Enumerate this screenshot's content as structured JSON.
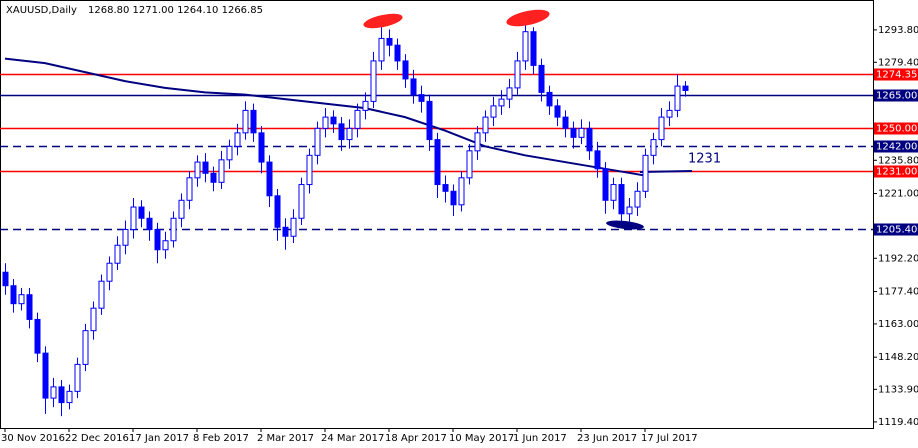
{
  "chart_data": {
    "type": "candlestick",
    "symbol": "XAUUSD,Daily",
    "quote": "1268.80 1271.00 1264.10 1266.85",
    "color": "#0000ff",
    "categories": [
      "30 Nov 2016",
      null,
      null,
      null,
      null,
      null,
      null,
      null,
      "22 Dec 2016",
      null,
      null,
      null,
      null,
      null,
      null,
      null,
      "17 Jan 2017",
      null,
      null,
      null,
      null,
      null,
      null,
      null,
      "8 Feb 2017",
      null,
      null,
      null,
      null,
      null,
      null,
      null,
      "2 Mar 2017",
      null,
      null,
      null,
      null,
      null,
      null,
      null,
      "24 Mar 2017",
      null,
      null,
      null,
      null,
      null,
      null,
      null,
      "18 Apr 2017",
      null,
      null,
      null,
      null,
      null,
      null,
      null,
      "10 May 2017",
      null,
      null,
      null,
      null,
      null,
      null,
      null,
      "1 Jun 2017",
      null,
      null,
      null,
      null,
      null,
      null,
      null,
      "23 Jun 2017",
      null,
      null,
      null,
      null,
      null,
      null,
      null,
      "17 Jul 2017",
      null,
      null,
      null,
      null,
      null
    ],
    "open": [
      1186,
      1180,
      1172,
      1176,
      1165,
      1150,
      1130,
      1135,
      1128,
      1133,
      1145,
      1160,
      1170,
      1182,
      1190,
      1198,
      1205,
      1215,
      1210,
      1205,
      1196,
      1200,
      1210,
      1218,
      1228,
      1235,
      1230,
      1226,
      1236,
      1242,
      1248,
      1258,
      1248,
      1235,
      1220,
      1206,
      1202,
      1210,
      1225,
      1238,
      1250,
      1255,
      1252,
      1245,
      1250,
      1258,
      1262,
      1280,
      1290,
      1287,
      1280,
      1272,
      1265,
      1262,
      1245,
      1225,
      1222,
      1216,
      1228,
      1240,
      1248,
      1255,
      1260,
      1263,
      1268,
      1280,
      1293,
      1278,
      1266,
      1260,
      1255,
      1250,
      1246,
      1250,
      1240,
      1232,
      1218,
      1225,
      1212,
      1215,
      1222,
      1238,
      1245,
      1255,
      1258,
      1268.8
    ],
    "high": [
      1190,
      1183,
      1179,
      1179,
      1168,
      1153,
      1139,
      1138,
      1136,
      1148,
      1163,
      1173,
      1185,
      1193,
      1202,
      1209,
      1219,
      1218,
      1213,
      1208,
      1204,
      1213,
      1221,
      1231,
      1238,
      1239,
      1233,
      1240,
      1245,
      1252,
      1262,
      1261,
      1251,
      1238,
      1223,
      1210,
      1214,
      1228,
      1241,
      1253,
      1259,
      1258,
      1255,
      1254,
      1261,
      1266,
      1284,
      1295,
      1294,
      1290,
      1283,
      1276,
      1269,
      1265,
      1248,
      1229,
      1225,
      1231,
      1243,
      1251,
      1258,
      1264,
      1267,
      1272,
      1284,
      1296,
      1295,
      1281,
      1269,
      1263,
      1258,
      1253,
      1254,
      1253,
      1244,
      1235,
      1228,
      1228,
      1219,
      1226,
      1241,
      1248,
      1259,
      1262,
      1274,
      1271
    ],
    "low": [
      1176,
      1168,
      1169,
      1161,
      1146,
      1123,
      1126,
      1122,
      1125,
      1130,
      1142,
      1156,
      1167,
      1178,
      1187,
      1194,
      1201,
      1206,
      1200,
      1190,
      1192,
      1197,
      1206,
      1214,
      1224,
      1226,
      1222,
      1223,
      1232,
      1238,
      1245,
      1244,
      1230,
      1215,
      1200,
      1196,
      1199,
      1207,
      1221,
      1234,
      1246,
      1248,
      1240,
      1241,
      1246,
      1254,
      1259,
      1276,
      1282,
      1276,
      1268,
      1261,
      1257,
      1240,
      1219,
      1217,
      1211,
      1213,
      1225,
      1236,
      1244,
      1251,
      1256,
      1259,
      1265,
      1276,
      1274,
      1262,
      1256,
      1251,
      1246,
      1241,
      1243,
      1236,
      1228,
      1212,
      1214,
      1206,
      1207,
      1211,
      1219,
      1234,
      1242,
      1251,
      1255,
      1264.1
    ],
    "close": [
      1180,
      1172,
      1176,
      1165,
      1150,
      1130,
      1135,
      1128,
      1133,
      1145,
      1160,
      1170,
      1182,
      1190,
      1198,
      1205,
      1215,
      1210,
      1205,
      1196,
      1200,
      1210,
      1218,
      1228,
      1235,
      1230,
      1226,
      1236,
      1242,
      1248,
      1258,
      1248,
      1235,
      1220,
      1206,
      1202,
      1210,
      1225,
      1238,
      1250,
      1255,
      1252,
      1245,
      1250,
      1258,
      1262,
      1280,
      1290,
      1287,
      1280,
      1272,
      1265,
      1262,
      1245,
      1225,
      1222,
      1216,
      1228,
      1240,
      1248,
      1255,
      1260,
      1263,
      1268,
      1280,
      1293,
      1278,
      1266,
      1260,
      1255,
      1250,
      1246,
      1250,
      1240,
      1232,
      1218,
      1225,
      1212,
      1215,
      1222,
      1238,
      1245,
      1255,
      1258,
      1268.8,
      1266.85
    ],
    "moving_average": {
      "color": "#000080",
      "x": [
        0,
        5,
        10,
        15,
        20,
        25,
        30,
        35,
        40,
        45,
        50,
        55,
        60,
        65,
        70,
        75,
        80
      ],
      "values": [
        1281,
        1279,
        1275,
        1271,
        1268,
        1266,
        1265,
        1263,
        1261,
        1259,
        1255,
        1249,
        1242,
        1238,
        1235,
        1232,
        1229
      ]
    },
    "levels": [
      {
        "value": 1274.35,
        "label": "1274.35",
        "color": "#ff0000",
        "style": "solid"
      },
      {
        "value": 1265,
        "label": "1265.00",
        "color": "#000080",
        "style": "solid"
      },
      {
        "value": 1250,
        "label": "1250.00",
        "color": "#ff0000",
        "style": "solid"
      },
      {
        "value": 1242,
        "label": "1242.00",
        "color": "#000080",
        "style": "dashed"
      },
      {
        "value": 1231,
        "label": "1231.00",
        "color": "#ff0000",
        "style": "solid"
      },
      {
        "value": 1205.4,
        "label": "1205.40",
        "color": "#000080",
        "style": "dashed"
      }
    ],
    "annotation": "1231",
    "ylim": [
      1116.7,
      1307.1
    ],
    "yticks": [
      {
        "value": 1293.8,
        "label": "1293.80"
      },
      {
        "value": 1279.4,
        "label": "1279.40"
      },
      {
        "value": 1235.8,
        "label": "1235.80"
      },
      {
        "value": 1221,
        "label": "1221.00"
      },
      {
        "value": 1192.2,
        "label": "1192.20"
      },
      {
        "value": 1177.4,
        "label": "1177.40"
      },
      {
        "value": 1163,
        "label": "1163.00"
      },
      {
        "value": 1148.2,
        "label": "1148.20"
      },
      {
        "value": 1133.9,
        "label": "1133.90"
      },
      {
        "value": 1119.4,
        "label": "1119.40"
      }
    ]
  }
}
